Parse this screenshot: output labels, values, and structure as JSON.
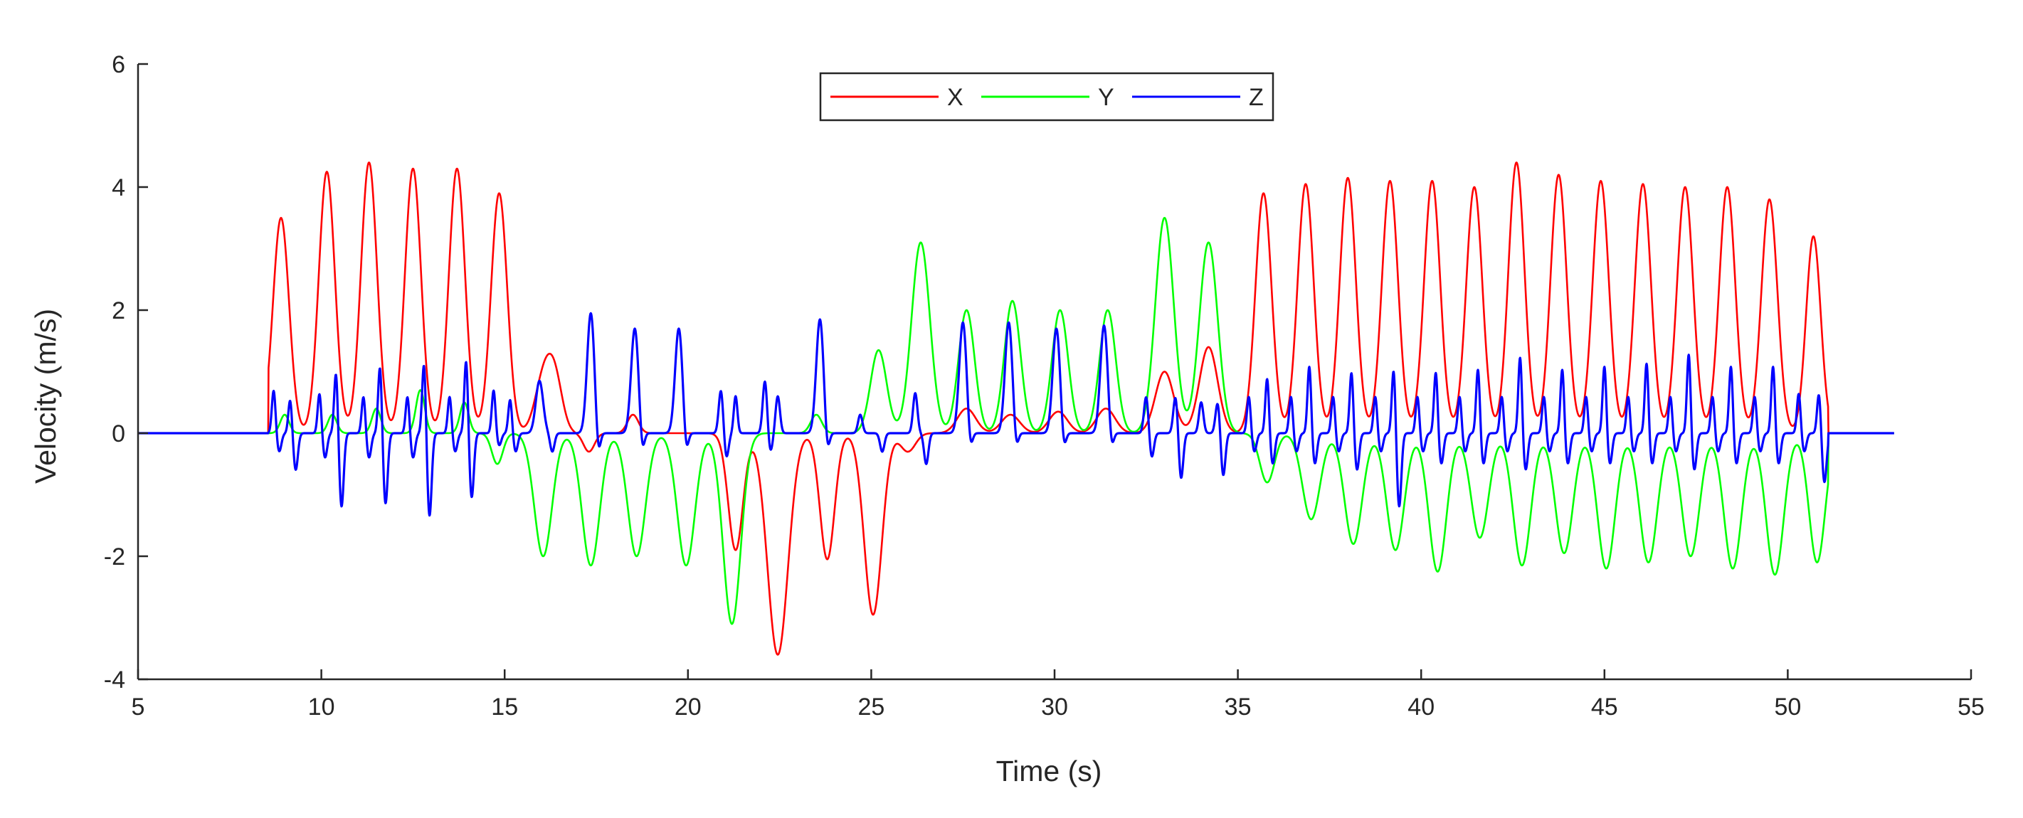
{
  "chart_data": {
    "type": "line",
    "title": "",
    "xlabel": "Time (s)",
    "ylabel": "Velocity (m/s)",
    "xlim": [
      5,
      55
    ],
    "ylim": [
      -4,
      6
    ],
    "xticks": [
      5,
      10,
      15,
      20,
      25,
      30,
      35,
      40,
      45,
      50,
      55
    ],
    "yticks": [
      -4,
      -2,
      0,
      2,
      4,
      6
    ],
    "grid": false,
    "legend": {
      "placement": "top-center",
      "orientation": "horizontal"
    },
    "series": [
      {
        "name": "X",
        "color": "#ff0000",
        "events": [
          {
            "t": 8.9,
            "a": 3.5,
            "w": 0.22
          },
          {
            "t": 10.15,
            "a": 4.25,
            "w": 0.22
          },
          {
            "t": 11.3,
            "a": 4.4,
            "w": 0.22
          },
          {
            "t": 12.5,
            "a": 4.3,
            "w": 0.22
          },
          {
            "t": 13.7,
            "a": 4.3,
            "w": 0.22
          },
          {
            "t": 14.85,
            "a": 3.9,
            "w": 0.22
          },
          {
            "t": 16.1,
            "a": 1.0,
            "w": 0.25
          },
          {
            "t": 16.4,
            "a": 0.6,
            "w": 0.2
          },
          {
            "t": 17.3,
            "a": -0.3,
            "w": 0.15
          },
          {
            "t": 18.5,
            "a": 0.3,
            "w": 0.15
          },
          {
            "t": 21.3,
            "a": -1.9,
            "w": 0.2
          },
          {
            "t": 22.45,
            "a": -3.6,
            "w": 0.28
          },
          {
            "t": 23.8,
            "a": -2.05,
            "w": 0.2
          },
          {
            "t": 25.05,
            "a": -2.95,
            "w": 0.24
          },
          {
            "t": 26.0,
            "a": -0.3,
            "w": 0.2
          },
          {
            "t": 27.6,
            "a": 0.4,
            "w": 0.25
          },
          {
            "t": 28.8,
            "a": 0.3,
            "w": 0.25
          },
          {
            "t": 30.1,
            "a": 0.35,
            "w": 0.25
          },
          {
            "t": 31.4,
            "a": 0.4,
            "w": 0.25
          },
          {
            "t": 33.0,
            "a": 1.0,
            "w": 0.25
          },
          {
            "t": 34.2,
            "a": 1.4,
            "w": 0.25
          },
          {
            "t": 35.7,
            "a": 3.9,
            "w": 0.22
          },
          {
            "t": 36.85,
            "a": 4.05,
            "w": 0.22
          },
          {
            "t": 38.0,
            "a": 4.15,
            "w": 0.22
          },
          {
            "t": 39.15,
            "a": 4.1,
            "w": 0.22
          },
          {
            "t": 40.3,
            "a": 4.1,
            "w": 0.22
          },
          {
            "t": 41.45,
            "a": 4.0,
            "w": 0.22
          },
          {
            "t": 42.6,
            "a": 4.4,
            "w": 0.22
          },
          {
            "t": 43.75,
            "a": 4.2,
            "w": 0.22
          },
          {
            "t": 44.9,
            "a": 4.1,
            "w": 0.22
          },
          {
            "t": 46.05,
            "a": 4.05,
            "w": 0.22
          },
          {
            "t": 47.2,
            "a": 4.0,
            "w": 0.22
          },
          {
            "t": 48.35,
            "a": 4.0,
            "w": 0.22
          },
          {
            "t": 49.5,
            "a": 3.8,
            "w": 0.22
          },
          {
            "t": 50.7,
            "a": 3.2,
            "w": 0.2
          }
        ]
      },
      {
        "name": "Y",
        "color": "#00ff00",
        "events": [
          {
            "t": 9.0,
            "a": 0.3,
            "w": 0.12
          },
          {
            "t": 10.3,
            "a": 0.3,
            "w": 0.12
          },
          {
            "t": 11.5,
            "a": 0.4,
            "w": 0.12
          },
          {
            "t": 12.7,
            "a": 0.7,
            "w": 0.12
          },
          {
            "t": 13.9,
            "a": 0.5,
            "w": 0.12
          },
          {
            "t": 14.8,
            "a": -0.5,
            "w": 0.15
          },
          {
            "t": 16.05,
            "a": -2.0,
            "w": 0.24
          },
          {
            "t": 17.35,
            "a": -2.15,
            "w": 0.24
          },
          {
            "t": 18.6,
            "a": -2.0,
            "w": 0.24
          },
          {
            "t": 19.95,
            "a": -2.15,
            "w": 0.24
          },
          {
            "t": 21.2,
            "a": -3.1,
            "w": 0.24
          },
          {
            "t": 23.5,
            "a": 0.3,
            "w": 0.15
          },
          {
            "t": 25.2,
            "a": 1.35,
            "w": 0.22
          },
          {
            "t": 26.35,
            "a": 3.1,
            "w": 0.25
          },
          {
            "t": 27.6,
            "a": 2.0,
            "w": 0.22
          },
          {
            "t": 28.85,
            "a": 2.15,
            "w": 0.22
          },
          {
            "t": 30.15,
            "a": 2.0,
            "w": 0.22
          },
          {
            "t": 31.45,
            "a": 2.0,
            "w": 0.22
          },
          {
            "t": 33.0,
            "a": 3.5,
            "w": 0.25
          },
          {
            "t": 34.2,
            "a": 3.1,
            "w": 0.25
          },
          {
            "t": 35.8,
            "a": -0.8,
            "w": 0.2
          },
          {
            "t": 37.0,
            "a": -1.4,
            "w": 0.24
          },
          {
            "t": 38.15,
            "a": -1.8,
            "w": 0.24
          },
          {
            "t": 39.3,
            "a": -1.9,
            "w": 0.24
          },
          {
            "t": 40.45,
            "a": -2.25,
            "w": 0.24
          },
          {
            "t": 41.6,
            "a": -1.7,
            "w": 0.24
          },
          {
            "t": 42.75,
            "a": -2.15,
            "w": 0.24
          },
          {
            "t": 43.9,
            "a": -1.95,
            "w": 0.24
          },
          {
            "t": 45.05,
            "a": -2.2,
            "w": 0.24
          },
          {
            "t": 46.2,
            "a": -2.1,
            "w": 0.24
          },
          {
            "t": 47.35,
            "a": -2.0,
            "w": 0.24
          },
          {
            "t": 48.5,
            "a": -2.2,
            "w": 0.24
          },
          {
            "t": 49.65,
            "a": -2.3,
            "w": 0.24
          },
          {
            "t": 50.8,
            "a": -2.1,
            "w": 0.22
          }
        ]
      },
      {
        "name": "Z",
        "color": "#0000ff",
        "events": [
          {
            "t": 8.7,
            "a": 0.7,
            "w": 0.05
          },
          {
            "t": 8.85,
            "a": -0.3,
            "w": 0.06
          },
          {
            "t": 9.15,
            "a": 0.55,
            "w": 0.05
          },
          {
            "t": 9.3,
            "a": -0.6,
            "w": 0.06
          },
          {
            "t": 9.95,
            "a": 0.65,
            "w": 0.05
          },
          {
            "t": 10.1,
            "a": -0.4,
            "w": 0.06
          },
          {
            "t": 10.4,
            "a": 1.0,
            "w": 0.05
          },
          {
            "t": 10.55,
            "a": -1.2,
            "w": 0.06
          },
          {
            "t": 11.15,
            "a": 0.6,
            "w": 0.05
          },
          {
            "t": 11.3,
            "a": -0.4,
            "w": 0.06
          },
          {
            "t": 11.6,
            "a": 1.1,
            "w": 0.05
          },
          {
            "t": 11.75,
            "a": -1.15,
            "w": 0.06
          },
          {
            "t": 12.35,
            "a": 0.6,
            "w": 0.05
          },
          {
            "t": 12.5,
            "a": -0.4,
            "w": 0.06
          },
          {
            "t": 12.8,
            "a": 1.15,
            "w": 0.05
          },
          {
            "t": 12.95,
            "a": -1.35,
            "w": 0.06
          },
          {
            "t": 13.5,
            "a": 0.6,
            "w": 0.05
          },
          {
            "t": 13.65,
            "a": -0.3,
            "w": 0.06
          },
          {
            "t": 13.95,
            "a": 1.2,
            "w": 0.05
          },
          {
            "t": 14.1,
            "a": -1.05,
            "w": 0.06
          },
          {
            "t": 14.7,
            "a": 0.7,
            "w": 0.05
          },
          {
            "t": 14.85,
            "a": -0.2,
            "w": 0.06
          },
          {
            "t": 15.15,
            "a": 0.55,
            "w": 0.05
          },
          {
            "t": 15.3,
            "a": -0.3,
            "w": 0.06
          },
          {
            "t": 15.95,
            "a": 0.85,
            "w": 0.1
          },
          {
            "t": 16.3,
            "a": -0.3,
            "w": 0.06
          },
          {
            "t": 17.35,
            "a": 1.95,
            "w": 0.1
          },
          {
            "t": 17.55,
            "a": -0.4,
            "w": 0.06
          },
          {
            "t": 18.55,
            "a": 1.7,
            "w": 0.1
          },
          {
            "t": 18.75,
            "a": -0.35,
            "w": 0.06
          },
          {
            "t": 19.75,
            "a": 1.7,
            "w": 0.1
          },
          {
            "t": 19.95,
            "a": -0.35,
            "w": 0.06
          },
          {
            "t": 20.9,
            "a": 0.7,
            "w": 0.06
          },
          {
            "t": 21.05,
            "a": -0.4,
            "w": 0.06
          },
          {
            "t": 21.3,
            "a": 0.6,
            "w": 0.05
          },
          {
            "t": 22.1,
            "a": 0.85,
            "w": 0.06
          },
          {
            "t": 22.25,
            "a": -0.3,
            "w": 0.06
          },
          {
            "t": 22.45,
            "a": 0.6,
            "w": 0.06
          },
          {
            "t": 23.6,
            "a": 1.85,
            "w": 0.1
          },
          {
            "t": 23.8,
            "a": -0.35,
            "w": 0.06
          },
          {
            "t": 24.7,
            "a": 0.3,
            "w": 0.06
          },
          {
            "t": 25.3,
            "a": -0.3,
            "w": 0.06
          },
          {
            "t": 26.2,
            "a": 0.65,
            "w": 0.06
          },
          {
            "t": 26.5,
            "a": -0.5,
            "w": 0.06
          },
          {
            "t": 27.5,
            "a": 1.8,
            "w": 0.1
          },
          {
            "t": 27.7,
            "a": -0.3,
            "w": 0.06
          },
          {
            "t": 28.75,
            "a": 1.8,
            "w": 0.1
          },
          {
            "t": 28.95,
            "a": -0.3,
            "w": 0.06
          },
          {
            "t": 30.05,
            "a": 1.7,
            "w": 0.1
          },
          {
            "t": 30.25,
            "a": -0.3,
            "w": 0.06
          },
          {
            "t": 31.35,
            "a": 1.75,
            "w": 0.1
          },
          {
            "t": 31.55,
            "a": -0.3,
            "w": 0.06
          },
          {
            "t": 32.5,
            "a": 0.6,
            "w": 0.06
          },
          {
            "t": 32.65,
            "a": -0.4,
            "w": 0.06
          },
          {
            "t": 33.3,
            "a": 0.6,
            "w": 0.06
          },
          {
            "t": 33.45,
            "a": -0.75,
            "w": 0.06
          },
          {
            "t": 34.0,
            "a": 0.5,
            "w": 0.06
          },
          {
            "t": 34.45,
            "a": 0.5,
            "w": 0.06
          },
          {
            "t": 34.6,
            "a": -0.7,
            "w": 0.06
          },
          {
            "t": 35.3,
            "a": 0.6,
            "w": 0.05
          },
          {
            "t": 35.45,
            "a": -0.3,
            "w": 0.06
          },
          {
            "t": 35.8,
            "a": 0.9,
            "w": 0.05
          },
          {
            "t": 35.95,
            "a": -0.5,
            "w": 0.06
          },
          {
            "t": 36.45,
            "a": 0.6,
            "w": 0.05
          },
          {
            "t": 36.6,
            "a": -0.3,
            "w": 0.06
          },
          {
            "t": 36.95,
            "a": 1.1,
            "w": 0.05
          },
          {
            "t": 37.1,
            "a": -0.5,
            "w": 0.06
          },
          {
            "t": 37.6,
            "a": 0.6,
            "w": 0.05
          },
          {
            "t": 37.75,
            "a": -0.3,
            "w": 0.06
          },
          {
            "t": 38.1,
            "a": 1.0,
            "w": 0.05
          },
          {
            "t": 38.25,
            "a": -0.6,
            "w": 0.06
          },
          {
            "t": 38.75,
            "a": 0.6,
            "w": 0.05
          },
          {
            "t": 38.9,
            "a": -0.3,
            "w": 0.06
          },
          {
            "t": 39.25,
            "a": 1.05,
            "w": 0.05
          },
          {
            "t": 39.4,
            "a": -1.2,
            "w": 0.06
          },
          {
            "t": 39.9,
            "a": 0.6,
            "w": 0.05
          },
          {
            "t": 40.05,
            "a": -0.3,
            "w": 0.06
          },
          {
            "t": 40.4,
            "a": 1.0,
            "w": 0.05
          },
          {
            "t": 40.55,
            "a": -0.5,
            "w": 0.06
          },
          {
            "t": 41.05,
            "a": 0.6,
            "w": 0.05
          },
          {
            "t": 41.2,
            "a": -0.3,
            "w": 0.06
          },
          {
            "t": 41.55,
            "a": 1.05,
            "w": 0.05
          },
          {
            "t": 41.7,
            "a": -0.5,
            "w": 0.06
          },
          {
            "t": 42.2,
            "a": 0.6,
            "w": 0.05
          },
          {
            "t": 42.35,
            "a": -0.3,
            "w": 0.06
          },
          {
            "t": 42.7,
            "a": 1.25,
            "w": 0.05
          },
          {
            "t": 42.85,
            "a": -0.6,
            "w": 0.06
          },
          {
            "t": 43.35,
            "a": 0.6,
            "w": 0.05
          },
          {
            "t": 43.5,
            "a": -0.3,
            "w": 0.06
          },
          {
            "t": 43.85,
            "a": 1.05,
            "w": 0.05
          },
          {
            "t": 44.0,
            "a": -0.5,
            "w": 0.06
          },
          {
            "t": 44.5,
            "a": 0.6,
            "w": 0.05
          },
          {
            "t": 44.65,
            "a": -0.3,
            "w": 0.06
          },
          {
            "t": 45.0,
            "a": 1.1,
            "w": 0.05
          },
          {
            "t": 45.15,
            "a": -0.5,
            "w": 0.06
          },
          {
            "t": 45.65,
            "a": 0.6,
            "w": 0.05
          },
          {
            "t": 45.8,
            "a": -0.3,
            "w": 0.06
          },
          {
            "t": 46.15,
            "a": 1.15,
            "w": 0.05
          },
          {
            "t": 46.3,
            "a": -0.5,
            "w": 0.06
          },
          {
            "t": 46.8,
            "a": 0.6,
            "w": 0.05
          },
          {
            "t": 46.95,
            "a": -0.3,
            "w": 0.06
          },
          {
            "t": 47.3,
            "a": 1.3,
            "w": 0.05
          },
          {
            "t": 47.45,
            "a": -0.6,
            "w": 0.06
          },
          {
            "t": 47.95,
            "a": 0.6,
            "w": 0.05
          },
          {
            "t": 48.1,
            "a": -0.3,
            "w": 0.06
          },
          {
            "t": 48.45,
            "a": 1.1,
            "w": 0.05
          },
          {
            "t": 48.6,
            "a": -0.5,
            "w": 0.06
          },
          {
            "t": 49.1,
            "a": 0.6,
            "w": 0.05
          },
          {
            "t": 49.25,
            "a": -0.3,
            "w": 0.06
          },
          {
            "t": 49.6,
            "a": 1.1,
            "w": 0.05
          },
          {
            "t": 49.75,
            "a": -0.5,
            "w": 0.06
          },
          {
            "t": 50.3,
            "a": 0.65,
            "w": 0.05
          },
          {
            "t": 50.45,
            "a": -0.3,
            "w": 0.06
          },
          {
            "t": 50.85,
            "a": 0.65,
            "w": 0.05
          },
          {
            "t": 51.0,
            "a": -0.8,
            "w": 0.06
          }
        ]
      }
    ],
    "sampling": {
      "t_start": 5.0,
      "t_end": 52.9,
      "signal_start": 8.55,
      "signal_end": 51.1,
      "dt": 0.01
    }
  }
}
